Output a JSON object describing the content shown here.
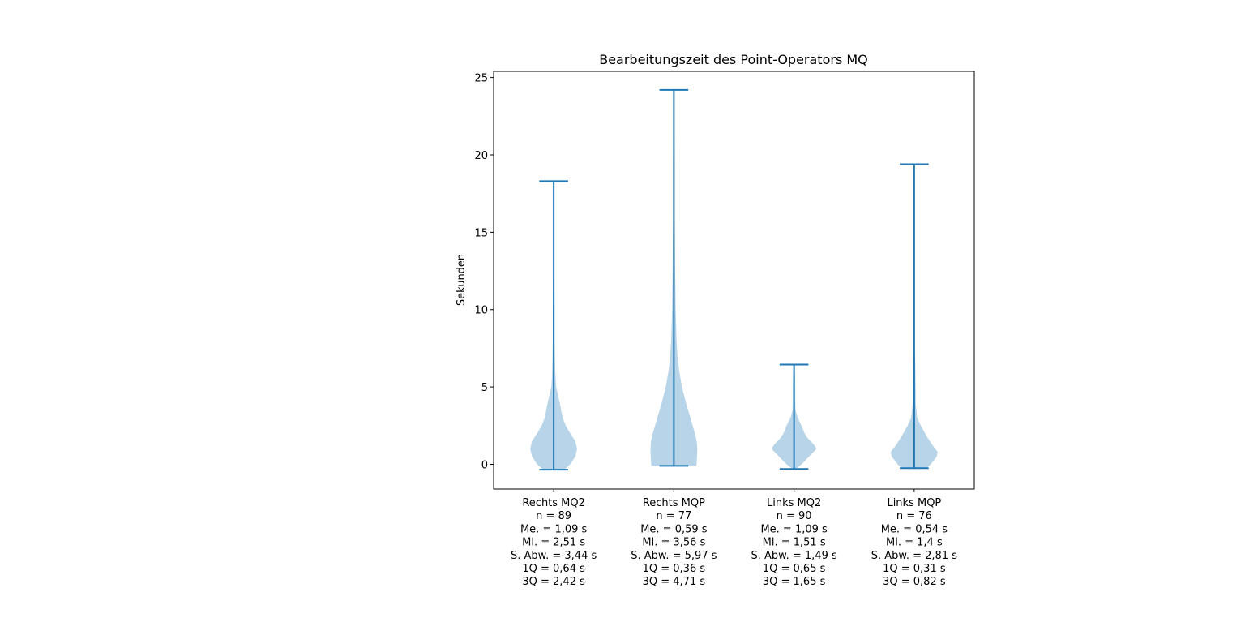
{
  "chart_data": {
    "type": "violin",
    "title": "Bearbeitungszeit des Point-Operators MQ",
    "xlabel": "",
    "ylabel": "Sekunden",
    "ylim": [
      -1.6,
      25.4
    ],
    "yticks": [
      0,
      5,
      10,
      15,
      20,
      25
    ],
    "grid": false,
    "colors": {
      "body": "#b8d4e8",
      "line": "#1f77b4"
    },
    "series": [
      {
        "label_lines": [
          "Rechts MQ2",
          "n = 89",
          "Me. = 1,09 s",
          "Mi. = 2,51 s",
          "S. Abw. = 3,44 s",
          "1Q = 0,64 s",
          "3Q = 2,42 s"
        ],
        "min": -0.35,
        "max": 18.3,
        "profile": [
          [
            -0.35,
            0.35
          ],
          [
            0,
            0.55
          ],
          [
            0.5,
            0.72
          ],
          [
            1.0,
            0.78
          ],
          [
            1.5,
            0.72
          ],
          [
            2.0,
            0.55
          ],
          [
            2.5,
            0.4
          ],
          [
            3.0,
            0.3
          ],
          [
            4.0,
            0.2
          ],
          [
            5.0,
            0.08
          ],
          [
            6.0,
            0.05
          ],
          [
            8.0,
            0.03
          ],
          [
            10.0,
            0.03
          ],
          [
            12.0,
            0.02
          ],
          [
            13.0,
            0.005
          ],
          [
            13.5,
            0
          ]
        ]
      },
      {
        "label_lines": [
          "Rechts MQP",
          "n = 77",
          "Me. = 0,59 s",
          "Mi. = 3,56 s",
          "S. Abw. = 5,97 s",
          "1Q = 0,36 s",
          "3Q = 4,71 s"
        ],
        "min": -0.1,
        "max": 24.2,
        "profile": [
          [
            -0.1,
            0.75
          ],
          [
            0.5,
            0.77
          ],
          [
            1.0,
            0.78
          ],
          [
            1.5,
            0.76
          ],
          [
            2.0,
            0.7
          ],
          [
            3.0,
            0.55
          ],
          [
            4.0,
            0.4
          ],
          [
            5.0,
            0.27
          ],
          [
            6.0,
            0.18
          ],
          [
            7.0,
            0.12
          ],
          [
            8.0,
            0.09
          ],
          [
            10.0,
            0.06
          ],
          [
            13.0,
            0.04
          ],
          [
            16.0,
            0.03
          ],
          [
            19.0,
            0.03
          ],
          [
            21.0,
            0.02
          ],
          [
            23.0,
            0.01
          ],
          [
            24.0,
            0
          ]
        ]
      },
      {
        "label_lines": [
          "Links MQ2",
          "n = 90",
          "Me. = 1,09 s",
          "Mi. = 1,51 s",
          "S. Abw. = 1,49 s",
          "1Q = 0,65 s",
          "3Q = 1,65 s"
        ],
        "min": -0.3,
        "max": 6.45,
        "profile": [
          [
            -0.3,
            0.05
          ],
          [
            0,
            0.25
          ],
          [
            0.5,
            0.5
          ],
          [
            1.0,
            0.75
          ],
          [
            1.3,
            0.65
          ],
          [
            1.7,
            0.45
          ],
          [
            2.0,
            0.35
          ],
          [
            2.5,
            0.25
          ],
          [
            3.0,
            0.12
          ],
          [
            3.5,
            0.05
          ],
          [
            4.0,
            0.04
          ],
          [
            5.0,
            0.04
          ],
          [
            6.0,
            0.03
          ],
          [
            6.45,
            0.0
          ]
        ]
      },
      {
        "label_lines": [
          "Links MQP",
          "n = 76",
          "Me. = 0,54 s",
          "Mi. = 1,4 s",
          "S. Abw. = 2,81 s",
          "1Q = 0,31 s",
          "3Q = 0,82 s"
        ],
        "min": -0.25,
        "max": 19.4,
        "profile": [
          [
            -0.25,
            0.42
          ],
          [
            0,
            0.55
          ],
          [
            0.5,
            0.75
          ],
          [
            0.8,
            0.78
          ],
          [
            1.2,
            0.62
          ],
          [
            1.8,
            0.42
          ],
          [
            2.5,
            0.22
          ],
          [
            3.0,
            0.1
          ],
          [
            4.0,
            0.05
          ],
          [
            5.0,
            0.05
          ],
          [
            6.0,
            0.04
          ],
          [
            7.0,
            0.03
          ],
          [
            7.5,
            0.01
          ],
          [
            8.0,
            0
          ]
        ]
      }
    ]
  }
}
